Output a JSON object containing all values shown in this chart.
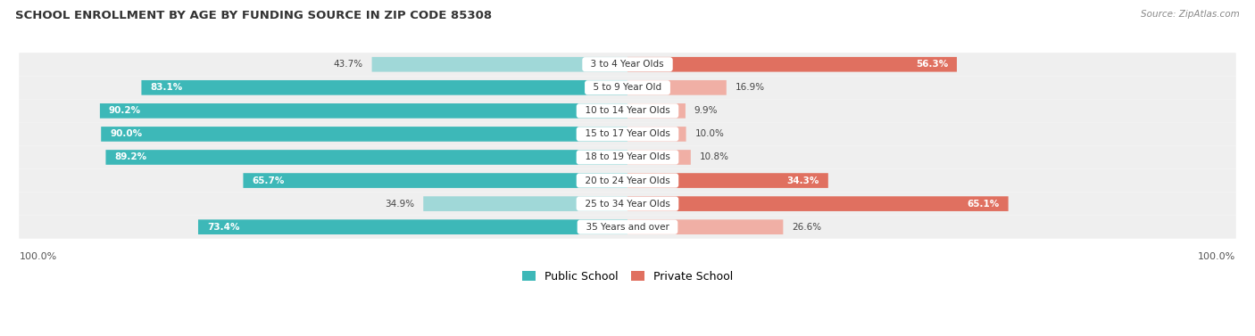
{
  "title": "SCHOOL ENROLLMENT BY AGE BY FUNDING SOURCE IN ZIP CODE 85308",
  "source": "Source: ZipAtlas.com",
  "categories": [
    "3 to 4 Year Olds",
    "5 to 9 Year Old",
    "10 to 14 Year Olds",
    "15 to 17 Year Olds",
    "18 to 19 Year Olds",
    "20 to 24 Year Olds",
    "25 to 34 Year Olds",
    "35 Years and over"
  ],
  "public_pct": [
    43.7,
    83.1,
    90.2,
    90.0,
    89.2,
    65.7,
    34.9,
    73.4
  ],
  "private_pct": [
    56.3,
    16.9,
    9.9,
    10.0,
    10.8,
    34.3,
    65.1,
    26.6
  ],
  "public_color_dark": "#3DB8B8",
  "public_color_light": "#A0D8D8",
  "private_color_dark": "#E07060",
  "private_color_light": "#F0AFA5",
  "legend_public": "Public School",
  "legend_private": "Private School",
  "x_left_label": "100.0%",
  "x_right_label": "100.0%",
  "bar_height": 0.62,
  "row_bg": "#EFEFEF",
  "figsize": [
    14.06,
    3.77
  ]
}
